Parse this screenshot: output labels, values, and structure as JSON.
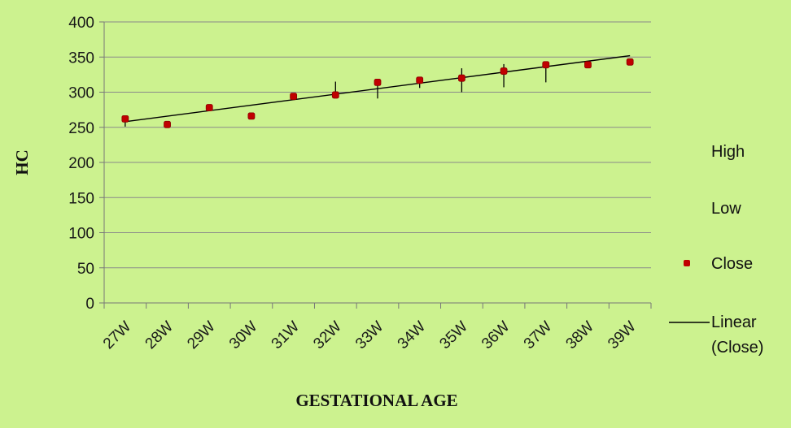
{
  "chart_data": {
    "type": "scatter",
    "title": "",
    "xlabel": "GESTATIONAL AGE",
    "ylabel": "HC",
    "ylim": [
      0,
      400
    ],
    "yticks": [
      0,
      50,
      100,
      150,
      200,
      250,
      300,
      350,
      400
    ],
    "categories": [
      "27W",
      "28W",
      "29W",
      "30W",
      "31W",
      "32W",
      "33W",
      "34W",
      "35W",
      "36W",
      "37W",
      "38W",
      "39W"
    ],
    "grid": true,
    "legend_position": "right",
    "series": [
      {
        "name": "High",
        "values": [
          263,
          255,
          279,
          268,
          295,
          315,
          315,
          320,
          334,
          340,
          340,
          341,
          344
        ]
      },
      {
        "name": "Low",
        "values": [
          251,
          253,
          277,
          264,
          292,
          292,
          291,
          306,
          300,
          307,
          314,
          337,
          342
        ]
      },
      {
        "name": "Close",
        "values": [
          262,
          254,
          278,
          266,
          294,
          296,
          314,
          317,
          320,
          330,
          339,
          339,
          343
        ],
        "color": "#C00000"
      },
      {
        "name": "Linear (Close)",
        "values": [
          258,
          352
        ],
        "color": "#000000"
      }
    ],
    "legend": [
      "High",
      "Low",
      "Close",
      "Linear (Close)"
    ]
  }
}
